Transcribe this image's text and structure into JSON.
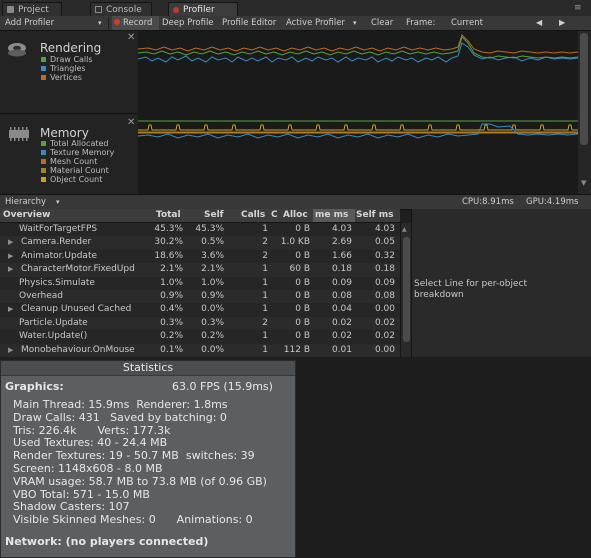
{
  "tabs": [
    {
      "label": "Project",
      "icon": "folder-icon"
    },
    {
      "label": "Console",
      "icon": "console-icon"
    },
    {
      "label": "Profiler",
      "icon": "profiler-icon"
    }
  ],
  "toolbar": {
    "add_profiler": "Add Profiler",
    "record": "Record",
    "deep_profile": "Deep Profile",
    "profiler_editor": "Profile Editor",
    "active_profiler": "Active Profiler",
    "clear": "Clear",
    "frame_label": "Frame:",
    "frame_value": "Current"
  },
  "rendering": {
    "title": "Rendering",
    "legend": [
      {
        "label": "Draw Calls",
        "color": "#53a43a"
      },
      {
        "label": "Triangles",
        "color": "#3b8ac4"
      },
      {
        "label": "Vertices",
        "color": "#c5691f"
      }
    ]
  },
  "memory": {
    "title": "Memory",
    "legend": [
      {
        "label": "Total Allocated",
        "color": "#53a43a"
      },
      {
        "label": "Texture Memory",
        "color": "#3b8ac4"
      },
      {
        "label": "Mesh Count",
        "color": "#c5691f"
      },
      {
        "label": "Material Count",
        "color": "#9a8a24"
      },
      {
        "label": "Object Count",
        "color": "#c9a02a"
      }
    ]
  },
  "hierarchy": {
    "mode": "Hierarchy",
    "cpu": "CPU:8.91ms",
    "gpu": "GPU:4.19ms"
  },
  "table": {
    "headers": [
      "Overview",
      "Total",
      "Self",
      "Calls",
      "C",
      "Alloc",
      "me ms",
      "Self ms"
    ],
    "rows": [
      {
        "name": "WaitForTargetFPS",
        "expandable": false,
        "total": "45.3%",
        "self": "45.3%",
        "calls": "1",
        "alloc": "0 B",
        "ms": "4.03",
        "selfms": "4.03"
      },
      {
        "name": "Camera.Render",
        "expandable": true,
        "total": "30.2%",
        "self": "0.5%",
        "calls": "2",
        "alloc": "1.0 KB",
        "ms": "2.69",
        "selfms": "0.05"
      },
      {
        "name": "Animator.Update",
        "expandable": true,
        "total": "18.6%",
        "self": "3.6%",
        "calls": "2",
        "alloc": "0 B",
        "ms": "1.66",
        "selfms": "0.32"
      },
      {
        "name": "CharacterMotor.FixedUpd",
        "expandable": true,
        "total": "2.1%",
        "self": "2.1%",
        "calls": "1",
        "alloc": "60 B",
        "ms": "0.18",
        "selfms": "0.18"
      },
      {
        "name": "Physics.Simulate",
        "expandable": false,
        "total": "1.0%",
        "self": "1.0%",
        "calls": "1",
        "alloc": "0 B",
        "ms": "0.09",
        "selfms": "0.09"
      },
      {
        "name": "Overhead",
        "expandable": false,
        "total": "0.9%",
        "self": "0.9%",
        "calls": "1",
        "alloc": "0 B",
        "ms": "0.08",
        "selfms": "0.08"
      },
      {
        "name": "Cleanup Unused Cached",
        "expandable": true,
        "total": "0.4%",
        "self": "0.0%",
        "calls": "1",
        "alloc": "0 B",
        "ms": "0.04",
        "selfms": "0.00"
      },
      {
        "name": "Particle.Update",
        "expandable": false,
        "total": "0.3%",
        "self": "0.3%",
        "calls": "2",
        "alloc": "0 B",
        "ms": "0.02",
        "selfms": "0.02"
      },
      {
        "name": "Water.Update()",
        "expandable": false,
        "total": "0.2%",
        "self": "0.2%",
        "calls": "1",
        "alloc": "0 B",
        "ms": "0.02",
        "selfms": "0.02"
      },
      {
        "name": "Monobehaviour.OnMouse",
        "expandable": true,
        "total": "0.1%",
        "self": "0.0%",
        "calls": "1",
        "alloc": "112 B",
        "ms": "0.01",
        "selfms": "0.00"
      }
    ]
  },
  "detail_hint": "Select Line for per-object breakdown",
  "statistics": {
    "title": "Statistics",
    "graphics_label": "Graphics:",
    "fps": "63.0 FPS (15.9ms)",
    "lines": [
      "Main Thread: 15.9ms  Renderer: 1.8ms",
      "Draw Calls: 431   Saved by batching: 0",
      "Tris: 226.4k      Verts: 177.3k",
      "Used Textures: 40 - 24.4 MB",
      "Render Textures: 19 - 50.7 MB  switches: 39",
      "Screen: 1148x608 - 8.0 MB",
      "VRAM usage: 58.7 MB to 73.8 MB (of 0.96 GB)",
      "VBO Total: 571 - 15.0 MB",
      "Shadow Casters: 107",
      "Visible Skinned Meshes: 0      Animations: 0"
    ],
    "network": "Network: (no players connected)"
  }
}
